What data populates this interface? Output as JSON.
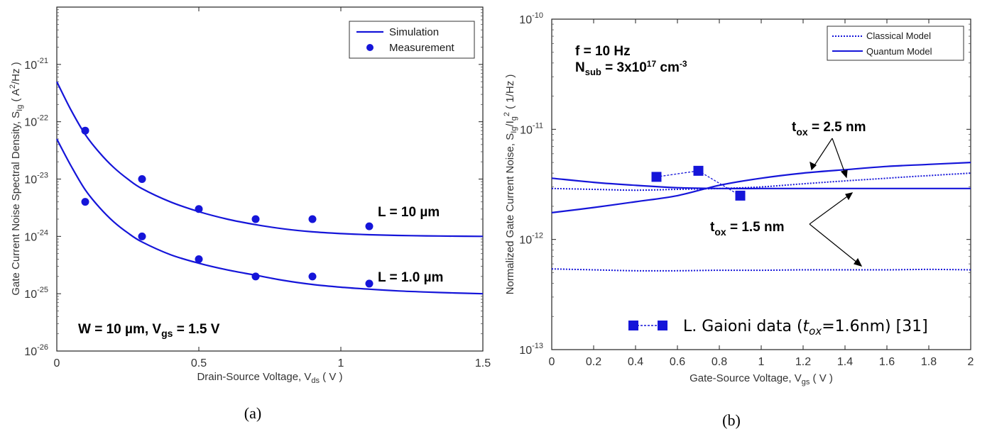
{
  "chart_data": [
    {
      "type": "line",
      "panel_label": "(a)",
      "xlabel": "Drain-Source Voltage, V",
      "xlabel_sub": "ds",
      "xlabel_tail": " ( V )",
      "ylabel": "Gate Current Noise Spectral Density, S",
      "ylabel_sub": "Ig",
      "ylabel_tail": " ( A",
      "ylabel_sup": "2",
      "ylabel_end": "/Hz )",
      "xlim": [
        0,
        1.5
      ],
      "ylim": [
        1e-26,
        1e-20
      ],
      "yscale": "log",
      "x_ticks": [
        "0",
        "0.5",
        "1",
        "1.5"
      ],
      "x_tick_values": [
        0,
        0.5,
        1,
        1.5
      ],
      "y_ticks": [
        {
          "value": 1e-26,
          "exp": "-26"
        },
        {
          "value": 1e-25,
          "exp": "-25"
        },
        {
          "value": 1e-24,
          "exp": "-24"
        },
        {
          "value": 1e-23,
          "exp": "-23"
        },
        {
          "value": 1e-22,
          "exp": "-22"
        },
        {
          "value": 1e-21,
          "exp": "-21"
        }
      ],
      "legend": {
        "placement": "top-right",
        "simulation": "Simulation",
        "measurement": "Measurement"
      },
      "color": "#1515d9",
      "series": [
        {
          "name": "Simulation",
          "group": "L = 10 µm",
          "kind": "line",
          "x": [
            0,
            0.05,
            0.1,
            0.15,
            0.2,
            0.25,
            0.3,
            0.4,
            0.5,
            0.6,
            0.7,
            0.8,
            0.9,
            1.0,
            1.1,
            1.2,
            1.3,
            1.4,
            1.5
          ],
          "y": [
            5e-22,
            1.6e-22,
            6e-23,
            2.9e-23,
            1.6e-23,
            1e-23,
            6.8e-24,
            4e-24,
            2.7e-24,
            2e-24,
            1.6e-24,
            1.35e-24,
            1.2e-24,
            1.12e-24,
            1.07e-24,
            1.04e-24,
            1.02e-24,
            1.01e-24,
            1e-24
          ]
        },
        {
          "name": "Measurement",
          "group": "L = 10 µm",
          "kind": "scatter",
          "x": [
            0.1,
            0.3,
            0.5,
            0.7,
            0.9,
            1.1
          ],
          "y": [
            7e-23,
            1e-23,
            3e-24,
            2e-24,
            2e-24,
            1.5e-24
          ]
        },
        {
          "name": "Simulation",
          "group": "L = 1.0 µm",
          "kind": "line",
          "x": [
            0,
            0.05,
            0.1,
            0.15,
            0.2,
            0.25,
            0.3,
            0.4,
            0.5,
            0.6,
            0.7,
            0.8,
            0.9,
            1.0,
            1.1,
            1.2,
            1.3,
            1.4,
            1.5
          ],
          "y": [
            5e-23,
            1.7e-23,
            6.5e-24,
            3.2e-24,
            1.8e-24,
            1.15e-24,
            8e-25,
            4.8e-25,
            3.4e-25,
            2.6e-25,
            2.1e-25,
            1.7e-25,
            1.45e-25,
            1.3e-25,
            1.2e-25,
            1.12e-25,
            1.07e-25,
            1.03e-25,
            1e-25
          ]
        },
        {
          "name": "Measurement",
          "group": "L = 1.0 µm",
          "kind": "scatter",
          "x": [
            0.1,
            0.3,
            0.5,
            0.7,
            0.9,
            1.1
          ],
          "y": [
            4e-24,
            1e-24,
            4e-25,
            2e-25,
            2e-25,
            1.5e-25
          ]
        }
      ],
      "annotations": {
        "label_l10": "L = 10 µm",
        "label_l1": "L = 1.0 µm",
        "cond_main": "W = 10 µm, V",
        "cond_sub": "gs",
        "cond_tail": " = 1.5 V"
      }
    },
    {
      "type": "line",
      "panel_label": "(b)",
      "xlabel": "Gate-Source Voltage, V",
      "xlabel_sub": "gs",
      "xlabel_tail": " ( V )",
      "ylabel": "Normalized Gate Current Noise, S",
      "ylabel_sub": "Ig",
      "ylabel_mid": "/I",
      "ylabel_sub2": "g",
      "ylabel_sup": "2",
      "ylabel_end": " ( 1/Hz )",
      "xlim": [
        0,
        2
      ],
      "ylim": [
        1e-13,
        1e-10
      ],
      "yscale": "log",
      "x_ticks": [
        "0",
        "0.2",
        "0.4",
        "0.6",
        "0.8",
        "1",
        "1.2",
        "1.4",
        "1.6",
        "1.8",
        "2"
      ],
      "x_tick_values": [
        0,
        0.2,
        0.4,
        0.6,
        0.8,
        1,
        1.2,
        1.4,
        1.6,
        1.8,
        2
      ],
      "y_ticks": [
        {
          "value": 1e-13,
          "exp": "-13"
        },
        {
          "value": 1e-12,
          "exp": "-12"
        },
        {
          "value": 1e-11,
          "exp": "-11"
        },
        {
          "value": 1e-10,
          "exp": "-10"
        }
      ],
      "legend": {
        "placement": "top-right",
        "classical": "Classical Model",
        "quantum": "Quantum Model"
      },
      "color": "#1515d9",
      "series": [
        {
          "name": "Classical Model",
          "group": "tox = 2.5 nm",
          "kind": "dotted",
          "x": [
            0,
            0.2,
            0.4,
            0.6,
            0.8,
            1.0,
            1.2,
            1.4,
            1.6,
            1.8,
            2.0
          ],
          "y": [
            2.9e-12,
            2.85e-12,
            2.8e-12,
            2.85e-12,
            2.9e-12,
            3e-12,
            3.2e-12,
            3.4e-12,
            3.6e-12,
            3.8e-12,
            4e-12
          ]
        },
        {
          "name": "Quantum Model",
          "group": "tox = 2.5 nm",
          "kind": "solid",
          "x": [
            0,
            0.2,
            0.4,
            0.6,
            0.8,
            1.0,
            1.2,
            1.4,
            1.6,
            1.8,
            2.0
          ],
          "y": [
            1.75e-12,
            1.95e-12,
            2.2e-12,
            2.5e-12,
            3.1e-12,
            3.6e-12,
            4e-12,
            4.3e-12,
            4.6e-12,
            4.8e-12,
            5e-12
          ]
        },
        {
          "name": "Quantum Model",
          "group": "tox = 1.5 nm",
          "kind": "solid",
          "x": [
            0,
            0.2,
            0.4,
            0.6,
            0.8,
            1.0,
            1.2,
            1.4,
            1.6,
            1.8,
            2.0
          ],
          "y": [
            3.6e-12,
            3.3e-12,
            3.1e-12,
            2.95e-12,
            2.9e-12,
            2.9e-12,
            2.9e-12,
            2.9e-12,
            2.9e-12,
            2.9e-12,
            2.9e-12
          ]
        },
        {
          "name": "Classical Model",
          "group": "tox = 1.5 nm",
          "kind": "dotted",
          "x": [
            0,
            0.2,
            0.4,
            0.6,
            0.8,
            1.0,
            1.2,
            1.4,
            1.6,
            1.8,
            2.0
          ],
          "y": [
            5.4e-13,
            5.3e-13,
            5.2e-13,
            5.2e-13,
            5.25e-13,
            5.25e-13,
            5.3e-13,
            5.3e-13,
            5.3e-13,
            5.35e-13,
            5.3e-13
          ]
        },
        {
          "name": "L. Gaioni data",
          "kind": "markers",
          "x": [
            0.5,
            0.7,
            0.9
          ],
          "y": [
            3.7e-12,
            4.2e-12,
            2.5e-12
          ]
        }
      ],
      "annotations": {
        "freq": "f = 10 Hz",
        "nsub_main": "N",
        "nsub_sub": "sub",
        "nsub_eq": " = 3x10",
        "nsub_sup": "17",
        "nsub_unit": " cm",
        "nsub_unit_sup": "-3",
        "tox25_main": "t",
        "tox25_sub": "ox",
        "tox25_tail": " = 2.5 nm",
        "tox15_main": "t",
        "tox15_sub": "ox",
        "tox15_tail": " = 1.5 nm",
        "gaioni_pre": "L. Gaioni data (",
        "gaioni_t": "t",
        "gaioni_sub": "ox",
        "gaioni_post": "=1.6nm)  [31]"
      }
    }
  ]
}
